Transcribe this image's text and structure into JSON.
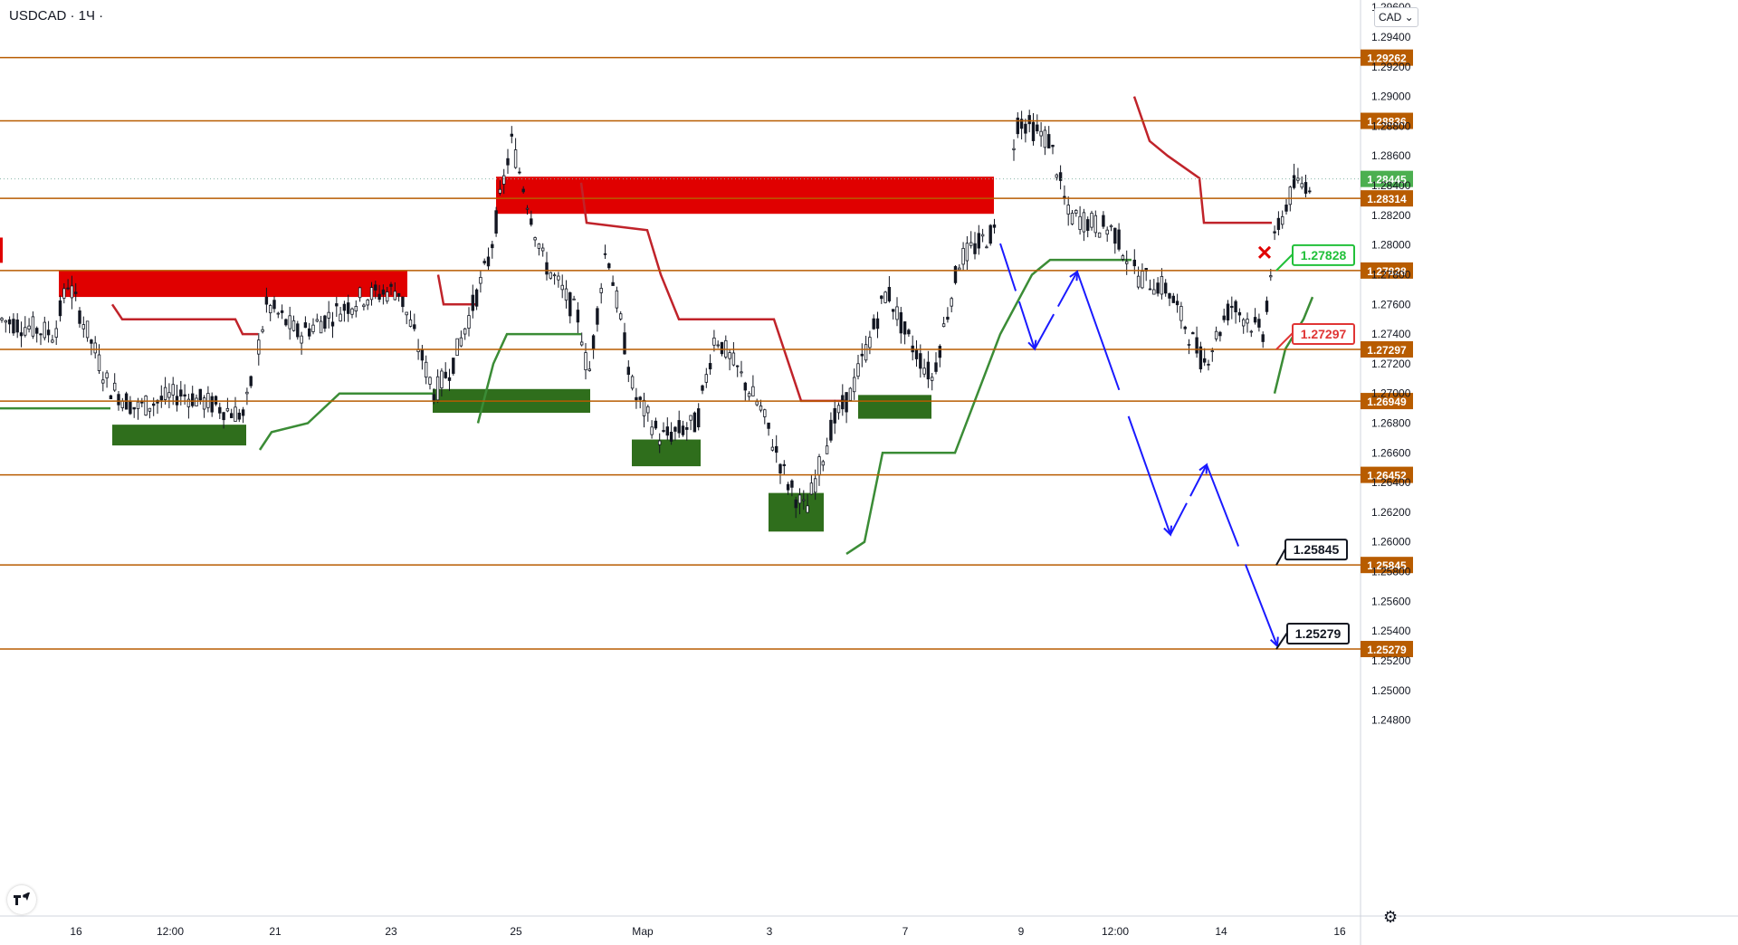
{
  "header": {
    "symbol": "USDCAD · 1Ч ·",
    "currency_button": "CAD ⌄"
  },
  "colors": {
    "level_line": "#b85c00",
    "bear": "#e00000",
    "bull": "#2f6e1c",
    "path": "#1a1aff",
    "bear_trail": "#c0232a",
    "bull_trail": "#3b8c36",
    "bull_label": "#22c03a",
    "bear_label": "#e03535",
    "last_price": "#4caf50"
  },
  "chart_data": {
    "type": "candlestick",
    "symbol": "USDCAD",
    "timeframe": "1Ч",
    "currency": "CAD",
    "ylim": [
      1.247,
      1.2965
    ],
    "y_ticks": [
      "1.24800",
      "1.25000",
      "1.25200",
      "1.25400",
      "1.25600",
      "1.25800",
      "1.26000",
      "1.26200",
      "1.26400",
      "1.26600",
      "1.26800",
      "1.27000",
      "1.27200",
      "1.27400",
      "1.27600",
      "1.27800",
      "1.28000",
      "1.28200",
      "1.28400",
      "1.28600",
      "1.28800",
      "1.29000",
      "1.29200",
      "1.29400",
      "1.29600"
    ],
    "x_ticks": [
      "16",
      "12:00",
      "21",
      "23",
      "25",
      "Мар",
      "3",
      "7",
      "9",
      "12:00",
      "14",
      "16"
    ],
    "horizontal_levels": [
      1.29262,
      1.28836,
      1.28314,
      1.27828,
      1.27297,
      1.26949,
      1.26452,
      1.25845,
      1.25279
    ],
    "level_labels": [
      "1.29262",
      "1.28836",
      "1.28314",
      "1.27828",
      "1.27297",
      "1.26949",
      "1.26452",
      "1.25845",
      "1.25279"
    ],
    "last_price": 1.28445,
    "last_price_label": "1.28445",
    "callouts": [
      {
        "text": "1.27828",
        "price": 1.27828,
        "style": "bull"
      },
      {
        "text": "1.27297",
        "price": 1.27297,
        "style": "bear"
      },
      {
        "text": "1.25845",
        "price": 1.25845,
        "style": "neutral"
      },
      {
        "text": "1.25279",
        "price": 1.25279,
        "style": "neutral"
      }
    ],
    "supply_zones": [
      [
        1.2783,
        1.2765
      ],
      [
        1.2846,
        1.2821
      ]
    ],
    "demand_zones": [
      [
        1.2679,
        1.2665
      ],
      [
        1.2703,
        1.2687
      ],
      [
        1.2669,
        1.2651
      ],
      [
        1.2633,
        1.2607
      ],
      [
        1.2699,
        1.2683
      ]
    ],
    "projected_path": [
      1.2801,
      1.273,
      1.2782,
      1.2605,
      1.2652,
      1.253
    ]
  }
}
